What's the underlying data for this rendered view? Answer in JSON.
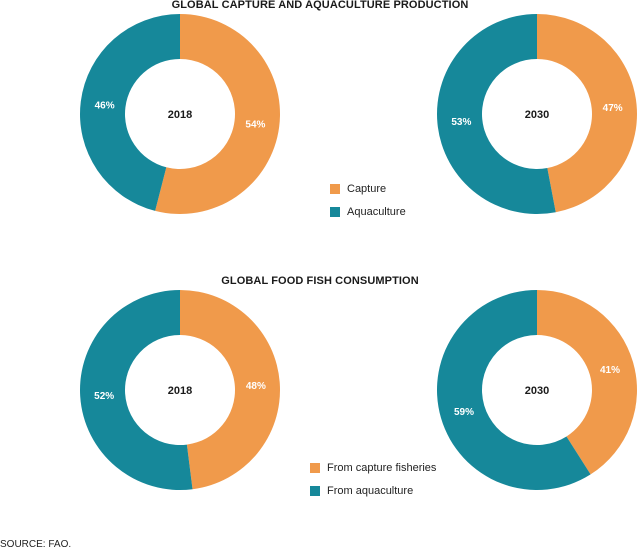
{
  "colors": {
    "capture": "#f09a4b",
    "aquaculture": "#16889a"
  },
  "sections": [
    {
      "title": "GLOBAL CAPTURE AND AQUACULTURE PRODUCTION",
      "legend": [
        "Capture",
        "Aquaculture"
      ]
    },
    {
      "title": "GLOBAL FOOD FISH CONSUMPTION",
      "legend": [
        "From capture fisheries",
        "From aquaculture"
      ]
    }
  ],
  "source": "SOURCE: FAO.",
  "chart_data": [
    {
      "type": "pie",
      "title": "GLOBAL CAPTURE AND AQUACULTURE PRODUCTION",
      "center_label": "2018",
      "slices": [
        {
          "name": "Capture",
          "value": 54,
          "label": "54%",
          "color": "#f09a4b"
        },
        {
          "name": "Aquaculture",
          "value": 46,
          "label": "46%",
          "color": "#16889a"
        }
      ]
    },
    {
      "type": "pie",
      "title": "GLOBAL CAPTURE AND AQUACULTURE PRODUCTION",
      "center_label": "2030",
      "slices": [
        {
          "name": "Capture",
          "value": 47,
          "label": "47%",
          "color": "#f09a4b"
        },
        {
          "name": "Aquaculture",
          "value": 53,
          "label": "53%",
          "color": "#16889a"
        }
      ]
    },
    {
      "type": "pie",
      "title": "GLOBAL FOOD FISH CONSUMPTION",
      "center_label": "2018",
      "slices": [
        {
          "name": "From capture fisheries",
          "value": 48,
          "label": "48%",
          "color": "#f09a4b"
        },
        {
          "name": "From aquaculture",
          "value": 52,
          "label": "52%",
          "color": "#16889a"
        }
      ]
    },
    {
      "type": "pie",
      "title": "GLOBAL FOOD FISH CONSUMPTION",
      "center_label": "2030",
      "slices": [
        {
          "name": "From capture fisheries",
          "value": 41,
          "label": "41%",
          "color": "#f09a4b"
        },
        {
          "name": "From aquaculture",
          "value": 59,
          "label": "59%",
          "color": "#16889a"
        }
      ]
    }
  ]
}
